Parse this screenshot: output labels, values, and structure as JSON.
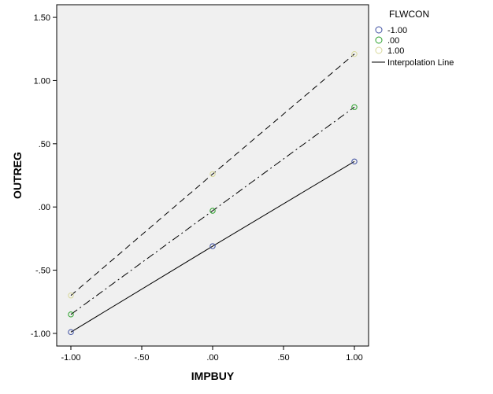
{
  "chart_data": {
    "type": "line",
    "xlabel": "IMPBUY",
    "ylabel": "OUTREG",
    "xlim": [
      -1.1,
      1.1
    ],
    "ylim": [
      -1.1,
      1.6
    ],
    "x_ticks": [
      {
        "value": -1.0,
        "label": "-1.00"
      },
      {
        "value": -0.5,
        "label": "-.50"
      },
      {
        "value": 0.0,
        "label": ".00"
      },
      {
        "value": 0.5,
        "label": ".50"
      },
      {
        "value": 1.0,
        "label": "1.00"
      }
    ],
    "y_ticks": [
      {
        "value": 1.5,
        "label": "1.50"
      },
      {
        "value": 1.0,
        "label": "1.00"
      },
      {
        "value": 0.5,
        "label": ".50"
      },
      {
        "value": 0.0,
        "label": ".00"
      },
      {
        "value": -0.5,
        "label": "-.50"
      },
      {
        "value": -1.0,
        "label": "-1.00"
      }
    ],
    "legend": {
      "title": "FLWCON",
      "placement": "right",
      "line_label": "Interpolation Line"
    },
    "series": [
      {
        "name": "-1.00",
        "color": "#3b4da0",
        "dash": "solid",
        "x": [
          -1.0,
          0.0,
          1.0
        ],
        "y": [
          -0.99,
          -0.31,
          0.36
        ]
      },
      {
        "name": ".00",
        "color": "#2aa02a",
        "dash": "dashdot",
        "x": [
          -1.0,
          0.0,
          1.0
        ],
        "y": [
          -0.85,
          -0.03,
          0.79
        ]
      },
      {
        "name": "1.00",
        "color": "#d8d89a",
        "dash": "dashed",
        "x": [
          -1.0,
          0.0,
          1.0
        ],
        "y": [
          -0.7,
          0.26,
          1.21
        ]
      }
    ]
  }
}
